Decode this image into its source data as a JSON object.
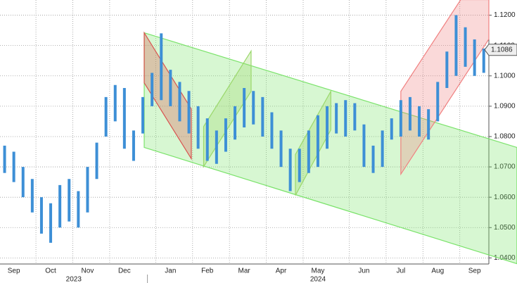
{
  "chart_data": {
    "type": "range_bar",
    "categories": [
      null,
      "Sep",
      null,
      null,
      null,
      "Oct",
      null,
      null,
      null,
      "Nov",
      null,
      null,
      null,
      "Dec",
      null,
      null,
      null,
      null,
      "Jan",
      null,
      null,
      null,
      "Feb",
      null,
      null,
      null,
      "Mar",
      null,
      null,
      null,
      "Apr",
      null,
      null,
      null,
      "May",
      null,
      null,
      null,
      null,
      "Jun",
      null,
      null,
      null,
      "Jul",
      null,
      null,
      null,
      "Aug",
      null,
      null,
      null,
      "Sep",
      null
    ],
    "x_groups": [
      {
        "label": "2023",
        "from": 0,
        "to": 15
      },
      {
        "label": "2024",
        "from": 16,
        "to": 52
      }
    ],
    "series": [
      {
        "name": "low",
        "values": [
          1.068,
          1.065,
          1.06,
          1.055,
          1.048,
          1.045,
          1.05,
          1.052,
          1.05,
          1.055,
          1.066,
          1.08,
          1.085,
          1.076,
          1.072,
          1.081,
          1.09,
          1.092,
          1.09,
          1.085,
          1.081,
          1.076,
          1.072,
          1.071,
          1.075,
          1.079,
          1.083,
          1.084,
          1.08,
          1.076,
          1.07,
          1.062,
          1.065,
          1.068,
          1.07,
          1.076,
          1.081,
          1.08,
          1.082,
          1.07,
          1.068,
          1.07,
          1.079,
          1.08,
          1.082,
          1.08,
          1.079,
          1.085,
          1.096,
          1.1,
          1.103,
          1.1,
          1.101
        ]
      },
      {
        "name": "high",
        "values": [
          1.077,
          1.075,
          1.07,
          1.066,
          1.06,
          1.058,
          1.064,
          1.066,
          1.062,
          1.07,
          1.078,
          1.093,
          1.097,
          1.096,
          1.082,
          1.093,
          1.101,
          1.114,
          1.102,
          1.098,
          1.095,
          1.09,
          1.086,
          1.082,
          1.086,
          1.09,
          1.096,
          1.095,
          1.093,
          1.088,
          1.082,
          1.076,
          1.076,
          1.082,
          1.087,
          1.09,
          1.091,
          1.092,
          1.091,
          1.084,
          1.077,
          1.082,
          1.086,
          1.092,
          1.093,
          1.09,
          1.089,
          1.098,
          1.108,
          1.12,
          1.116,
          1.112,
          1.109
        ]
      }
    ],
    "color": "#3d8fd6",
    "last_price": {
      "value": 1.1086,
      "label": "1.1086"
    },
    "channels": [
      {
        "color": "#7be36b",
        "points": [
          [
            15.15,
            1.1142
          ],
          [
            55.6,
            1.0764
          ],
          [
            55.6,
            1.0381
          ],
          [
            15.15,
            1.0764
          ]
        ]
      },
      {
        "color": "#d9534f",
        "points": [
          [
            15.15,
            1.1142
          ],
          [
            20.26,
            1.0891
          ],
          [
            20.26,
            1.0727
          ],
          [
            15.15,
            1.0977
          ]
        ]
      },
      {
        "color": "#9ad86a",
        "points": [
          [
            21.6,
            1.0833
          ],
          [
            26.75,
            1.1082
          ],
          [
            26.75,
            1.0949
          ],
          [
            21.6,
            1.0701
          ]
        ]
      },
      {
        "color": "#9ad86a",
        "points": [
          [
            31.56,
            1.0741
          ],
          [
            35.4,
            1.0949
          ],
          [
            35.4,
            1.0822
          ],
          [
            31.56,
            1.0606
          ]
        ]
      },
      {
        "color": "#f08080",
        "points": [
          [
            43.0,
            1.0949
          ],
          [
            49.5,
            1.1251
          ],
          [
            52.55,
            1.1251
          ],
          [
            52.55,
            1.1121
          ],
          [
            43.0,
            1.0676
          ]
        ]
      }
    ],
    "ylim": [
      1.038,
      1.125
    ],
    "yticks": [
      {
        "value": 1.04,
        "label": "1.0400"
      },
      {
        "value": 1.05,
        "label": "1.0500"
      },
      {
        "value": 1.06,
        "label": "1.0600"
      },
      {
        "value": 1.07,
        "label": "1.0700"
      },
      {
        "value": 1.08,
        "label": "1.0800"
      },
      {
        "value": 1.09,
        "label": "1.0900"
      },
      {
        "value": 1.1,
        "label": "1.1000"
      },
      {
        "value": 1.11,
        "label": "1.1100"
      },
      {
        "value": 1.12,
        "label": "1.1200"
      }
    ],
    "grid": true
  }
}
